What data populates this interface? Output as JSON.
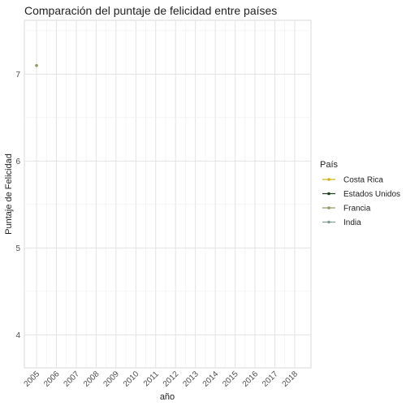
{
  "chart_data": {
    "type": "line",
    "title": "Comparación del puntaje de felicidad entre países",
    "xlabel": "año",
    "ylabel": "Puntaje de Felicidad",
    "categories": [
      "2005",
      "2006",
      "2007",
      "2008",
      "2009",
      "2010",
      "2011",
      "2012",
      "2013",
      "2014",
      "2015",
      "2016",
      "2017",
      "2018"
    ],
    "ylim": [
      3.62,
      7.62
    ],
    "yticks": [
      4,
      5,
      6,
      7
    ],
    "grid": true,
    "legend": {
      "title": "País",
      "position": "right"
    },
    "series": [
      {
        "name": "Costa Rica",
        "color": "#d4b11c",
        "values": [
          null,
          null,
          null,
          null,
          null,
          null,
          null,
          null,
          null,
          null,
          null,
          null,
          null,
          null
        ]
      },
      {
        "name": "Estados Unidos",
        "color": "#1f3d1f",
        "values": [
          null,
          null,
          null,
          null,
          null,
          null,
          null,
          null,
          null,
          null,
          null,
          null,
          null,
          null
        ]
      },
      {
        "name": "Francia",
        "color": "#8f9a63",
        "values": [
          7.1,
          null,
          null,
          null,
          null,
          null,
          null,
          null,
          null,
          null,
          null,
          null,
          null,
          null
        ]
      },
      {
        "name": "India",
        "color": "#7f9b94",
        "values": [
          null,
          null,
          null,
          null,
          null,
          null,
          null,
          null,
          null,
          null,
          null,
          null,
          null,
          null
        ]
      }
    ]
  }
}
